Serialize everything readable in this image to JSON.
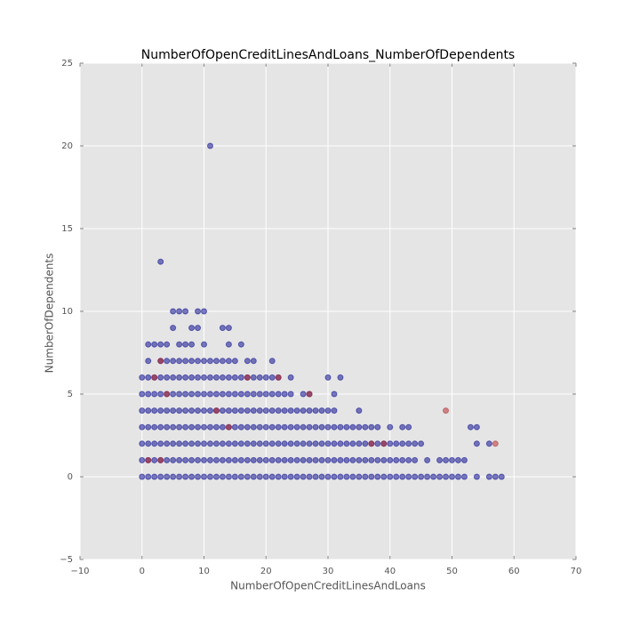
{
  "chart_data": {
    "type": "scatter",
    "title": "NumberOfOpenCreditLinesAndLoans_NumberOfDependents",
    "x_label": "NumberOfOpenCreditLinesAndLoans",
    "y_label": "NumberOfDependents",
    "xlim": [
      -10,
      70
    ],
    "ylim": [
      -5,
      25
    ],
    "xticks": [
      {
        "value": -10,
        "label": "−10"
      },
      0,
      10,
      20,
      30,
      40,
      50,
      60,
      70
    ],
    "yticks": [
      {
        "value": -5,
        "label": "−5"
      },
      0,
      5,
      10,
      15,
      20,
      25
    ],
    "grid": true,
    "series": [
      {
        "color": "#00008b",
        "x": [
          0,
          1,
          2,
          3,
          4,
          5,
          6,
          7,
          8,
          9,
          10,
          11,
          12,
          13,
          14,
          15,
          16,
          17,
          18,
          19,
          20,
          21,
          22,
          23,
          24,
          25,
          26,
          27,
          28,
          29,
          30,
          31,
          32,
          33,
          34,
          35,
          36,
          37,
          38,
          39,
          40,
          41,
          42,
          43,
          44,
          45,
          46,
          47,
          48,
          49,
          50,
          51,
          52,
          54,
          56,
          57,
          58,
          0,
          1,
          2,
          3,
          4,
          5,
          6,
          7,
          8,
          9,
          10,
          11,
          12,
          13,
          14,
          15,
          16,
          17,
          18,
          19,
          20,
          21,
          22,
          23,
          24,
          25,
          26,
          27,
          28,
          29,
          30,
          31,
          32,
          33,
          34,
          35,
          36,
          37,
          38,
          39,
          40,
          41,
          42,
          43,
          44,
          46,
          48,
          49,
          50,
          51,
          52,
          0,
          1,
          2,
          3,
          4,
          5,
          6,
          7,
          8,
          9,
          10,
          11,
          12,
          13,
          14,
          15,
          16,
          17,
          18,
          19,
          20,
          21,
          22,
          23,
          24,
          25,
          26,
          27,
          28,
          29,
          30,
          31,
          32,
          33,
          34,
          35,
          36,
          37,
          38,
          39,
          40,
          41,
          42,
          43,
          44,
          45,
          54,
          56,
          0,
          1,
          2,
          3,
          4,
          5,
          6,
          7,
          8,
          9,
          10,
          11,
          12,
          13,
          14,
          15,
          16,
          17,
          18,
          19,
          20,
          21,
          22,
          23,
          24,
          25,
          26,
          27,
          28,
          29,
          30,
          31,
          32,
          33,
          34,
          35,
          36,
          37,
          38,
          40,
          42,
          43,
          53,
          54,
          0,
          1,
          2,
          3,
          4,
          5,
          6,
          7,
          8,
          9,
          10,
          11,
          12,
          13,
          14,
          15,
          16,
          17,
          18,
          19,
          20,
          21,
          22,
          23,
          24,
          25,
          26,
          27,
          28,
          29,
          30,
          31,
          35,
          0,
          1,
          2,
          3,
          4,
          5,
          6,
          7,
          8,
          9,
          10,
          11,
          12,
          13,
          14,
          15,
          16,
          17,
          18,
          19,
          20,
          21,
          22,
          23,
          24,
          26,
          27,
          31,
          0,
          1,
          2,
          3,
          4,
          5,
          6,
          7,
          8,
          9,
          10,
          11,
          12,
          13,
          14,
          15,
          16,
          17,
          18,
          19,
          20,
          21,
          22,
          24,
          30,
          32,
          1,
          3,
          4,
          5,
          6,
          7,
          8,
          9,
          10,
          11,
          12,
          13,
          14,
          15,
          17,
          18,
          21,
          1,
          2,
          3,
          4,
          6,
          7,
          8,
          10,
          14,
          16,
          5,
          8,
          9,
          13,
          14,
          5,
          6,
          7,
          9,
          10,
          3,
          11
        ],
        "values": [
          0,
          0,
          0,
          0,
          0,
          0,
          0,
          0,
          0,
          0,
          0,
          0,
          0,
          0,
          0,
          0,
          0,
          0,
          0,
          0,
          0,
          0,
          0,
          0,
          0,
          0,
          0,
          0,
          0,
          0,
          0,
          0,
          0,
          0,
          0,
          0,
          0,
          0,
          0,
          0,
          0,
          0,
          0,
          0,
          0,
          0,
          0,
          0,
          0,
          0,
          0,
          0,
          0,
          0,
          0,
          0,
          0,
          1,
          1,
          1,
          1,
          1,
          1,
          1,
          1,
          1,
          1,
          1,
          1,
          1,
          1,
          1,
          1,
          1,
          1,
          1,
          1,
          1,
          1,
          1,
          1,
          1,
          1,
          1,
          1,
          1,
          1,
          1,
          1,
          1,
          1,
          1,
          1,
          1,
          1,
          1,
          1,
          1,
          1,
          1,
          1,
          1,
          1,
          1,
          1,
          1,
          1,
          1,
          2,
          2,
          2,
          2,
          2,
          2,
          2,
          2,
          2,
          2,
          2,
          2,
          2,
          2,
          2,
          2,
          2,
          2,
          2,
          2,
          2,
          2,
          2,
          2,
          2,
          2,
          2,
          2,
          2,
          2,
          2,
          2,
          2,
          2,
          2,
          2,
          2,
          2,
          2,
          2,
          2,
          2,
          2,
          2,
          2,
          2,
          2,
          2,
          3,
          3,
          3,
          3,
          3,
          3,
          3,
          3,
          3,
          3,
          3,
          3,
          3,
          3,
          3,
          3,
          3,
          3,
          3,
          3,
          3,
          3,
          3,
          3,
          3,
          3,
          3,
          3,
          3,
          3,
          3,
          3,
          3,
          3,
          3,
          3,
          3,
          3,
          3,
          3,
          3,
          3,
          3,
          3,
          4,
          4,
          4,
          4,
          4,
          4,
          4,
          4,
          4,
          4,
          4,
          4,
          4,
          4,
          4,
          4,
          4,
          4,
          4,
          4,
          4,
          4,
          4,
          4,
          4,
          4,
          4,
          4,
          4,
          4,
          4,
          4,
          4,
          5,
          5,
          5,
          5,
          5,
          5,
          5,
          5,
          5,
          5,
          5,
          5,
          5,
          5,
          5,
          5,
          5,
          5,
          5,
          5,
          5,
          5,
          5,
          5,
          5,
          5,
          5,
          5,
          6,
          6,
          6,
          6,
          6,
          6,
          6,
          6,
          6,
          6,
          6,
          6,
          6,
          6,
          6,
          6,
          6,
          6,
          6,
          6,
          6,
          6,
          6,
          6,
          6,
          6,
          7,
          7,
          7,
          7,
          7,
          7,
          7,
          7,
          7,
          7,
          7,
          7,
          7,
          7,
          7,
          7,
          7,
          8,
          8,
          8,
          8,
          8,
          8,
          8,
          8,
          8,
          8,
          9,
          9,
          9,
          9,
          9,
          10,
          10,
          10,
          10,
          10,
          13,
          20
        ]
      },
      {
        "color": "#b22222",
        "x": [
          3,
          4,
          2,
          17,
          22,
          27,
          12,
          14,
          37,
          39,
          57,
          49,
          1,
          3
        ],
        "values": [
          7,
          5,
          6,
          6,
          6,
          5,
          4,
          3,
          2,
          2,
          2,
          4,
          1,
          1
        ]
      }
    ]
  }
}
